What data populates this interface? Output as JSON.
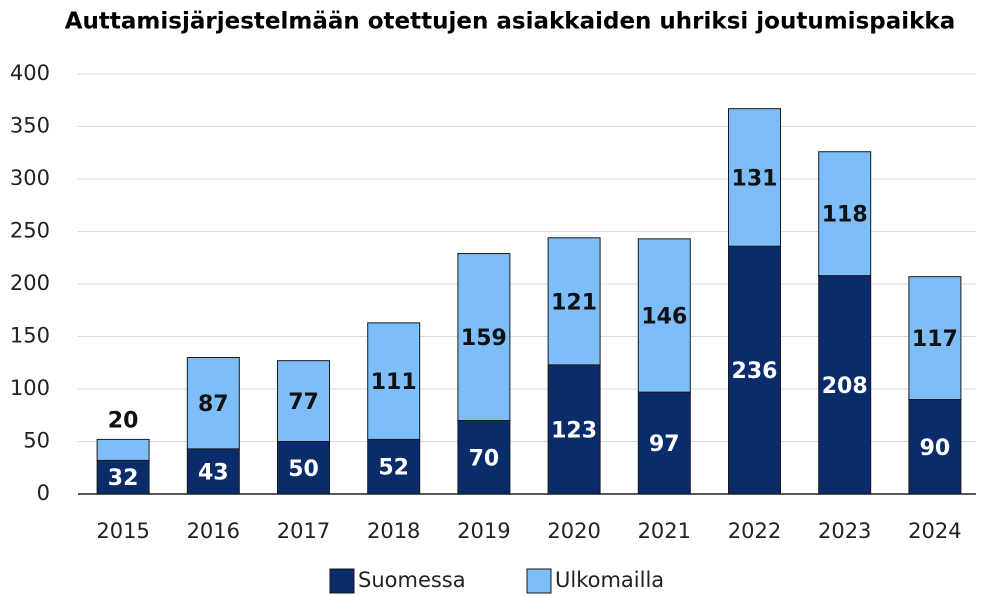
{
  "chart_data": {
    "type": "stacked_bar",
    "title": "Auttamisjärjestelmään otettujen asiakkaiden uhriksi joutumispaikka",
    "categories": [
      "2015",
      "2016",
      "2017",
      "2018",
      "2019",
      "2020",
      "2021",
      "2022",
      "2023",
      "2024"
    ],
    "series": [
      {
        "name": "Suomessa",
        "color": "#0b2c6b",
        "values": [
          32,
          43,
          50,
          52,
          70,
          123,
          97,
          236,
          208,
          90
        ]
      },
      {
        "name": "Ulkomailla",
        "color": "#7dbdf8",
        "values": [
          20,
          87,
          77,
          111,
          159,
          121,
          146,
          131,
          118,
          117
        ]
      }
    ],
    "ylim": [
      0,
      400
    ],
    "yticks": [
      0,
      50,
      100,
      150,
      200,
      250,
      300,
      350,
      400
    ],
    "grid": true,
    "legend": "bottom"
  }
}
